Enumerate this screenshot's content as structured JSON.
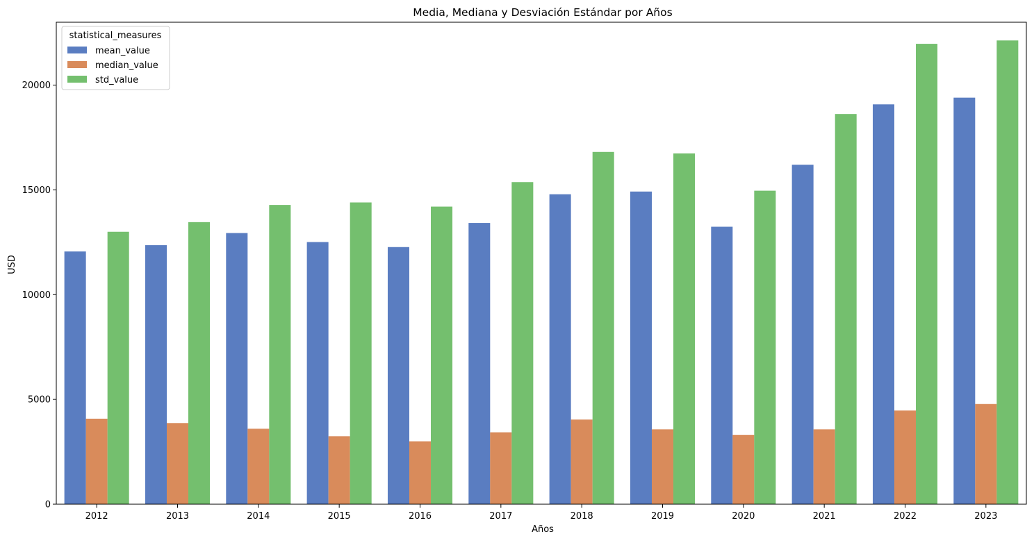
{
  "chart_data": {
    "type": "bar",
    "title": "Media, Mediana y Desviación Estándar por Años",
    "xlabel": "Años",
    "ylabel": "USD",
    "categories": [
      "2012",
      "2013",
      "2014",
      "2015",
      "2016",
      "2017",
      "2018",
      "2019",
      "2020",
      "2021",
      "2022",
      "2023"
    ],
    "series": [
      {
        "name": "mean_value",
        "color": "#5a7dc1",
        "values": [
          12060,
          12360,
          12940,
          12510,
          12270,
          13420,
          14790,
          14920,
          13240,
          16200,
          19080,
          19400
        ]
      },
      {
        "name": "median_value",
        "color": "#d98b5b",
        "values": [
          4080,
          3870,
          3600,
          3240,
          3000,
          3430,
          4040,
          3570,
          3310,
          3570,
          4470,
          4780
        ]
      },
      {
        "name": "std_value",
        "color": "#74bf6e",
        "values": [
          13000,
          13460,
          14280,
          14400,
          14200,
          15370,
          16810,
          16740,
          14960,
          18620,
          21970,
          22130
        ]
      }
    ],
    "ylim": [
      0,
      23000
    ],
    "yticks": [
      0,
      5000,
      10000,
      15000,
      20000
    ],
    "legend": {
      "title": "statistical_measures",
      "placement": "top-left"
    },
    "grid": false
  }
}
